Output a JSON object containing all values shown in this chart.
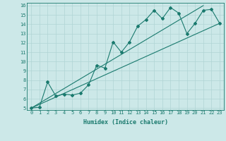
{
  "title": "",
  "xlabel": "Humidex (Indice chaleur)",
  "ylabel": "",
  "xlim": [
    -0.5,
    23.5
  ],
  "ylim": [
    4.8,
    16.3
  ],
  "xticks": [
    0,
    1,
    2,
    3,
    4,
    5,
    6,
    7,
    8,
    9,
    10,
    11,
    12,
    13,
    14,
    15,
    16,
    17,
    18,
    19,
    20,
    21,
    22,
    23
  ],
  "yticks": [
    5,
    6,
    7,
    8,
    9,
    10,
    11,
    12,
    13,
    14,
    15,
    16
  ],
  "bg_color": "#cce8e8",
  "grid_color": "#b0d4d4",
  "line_color": "#1a7a6e",
  "line1_x": [
    0,
    1,
    2,
    3,
    4,
    5,
    6,
    7,
    8,
    9,
    10,
    11,
    12,
    13,
    14,
    15,
    16,
    17,
    18,
    19,
    20,
    21,
    22,
    23
  ],
  "line1_y": [
    5.0,
    5.1,
    7.8,
    6.3,
    6.5,
    6.4,
    6.6,
    7.5,
    9.6,
    9.3,
    12.1,
    11.0,
    12.1,
    13.8,
    14.5,
    15.5,
    14.6,
    15.8,
    15.2,
    13.0,
    14.1,
    15.5,
    15.6,
    14.1
  ],
  "line2_x": [
    0,
    23
  ],
  "line2_y": [
    5.0,
    14.1
  ],
  "line3_x": [
    0,
    21
  ],
  "line3_y": [
    5.0,
    16.0
  ],
  "marker": "D",
  "markersize": 2.0,
  "linewidth": 0.8,
  "font_color": "#1a7a6e",
  "xlabel_fontsize": 6,
  "tick_fontsize": 5
}
